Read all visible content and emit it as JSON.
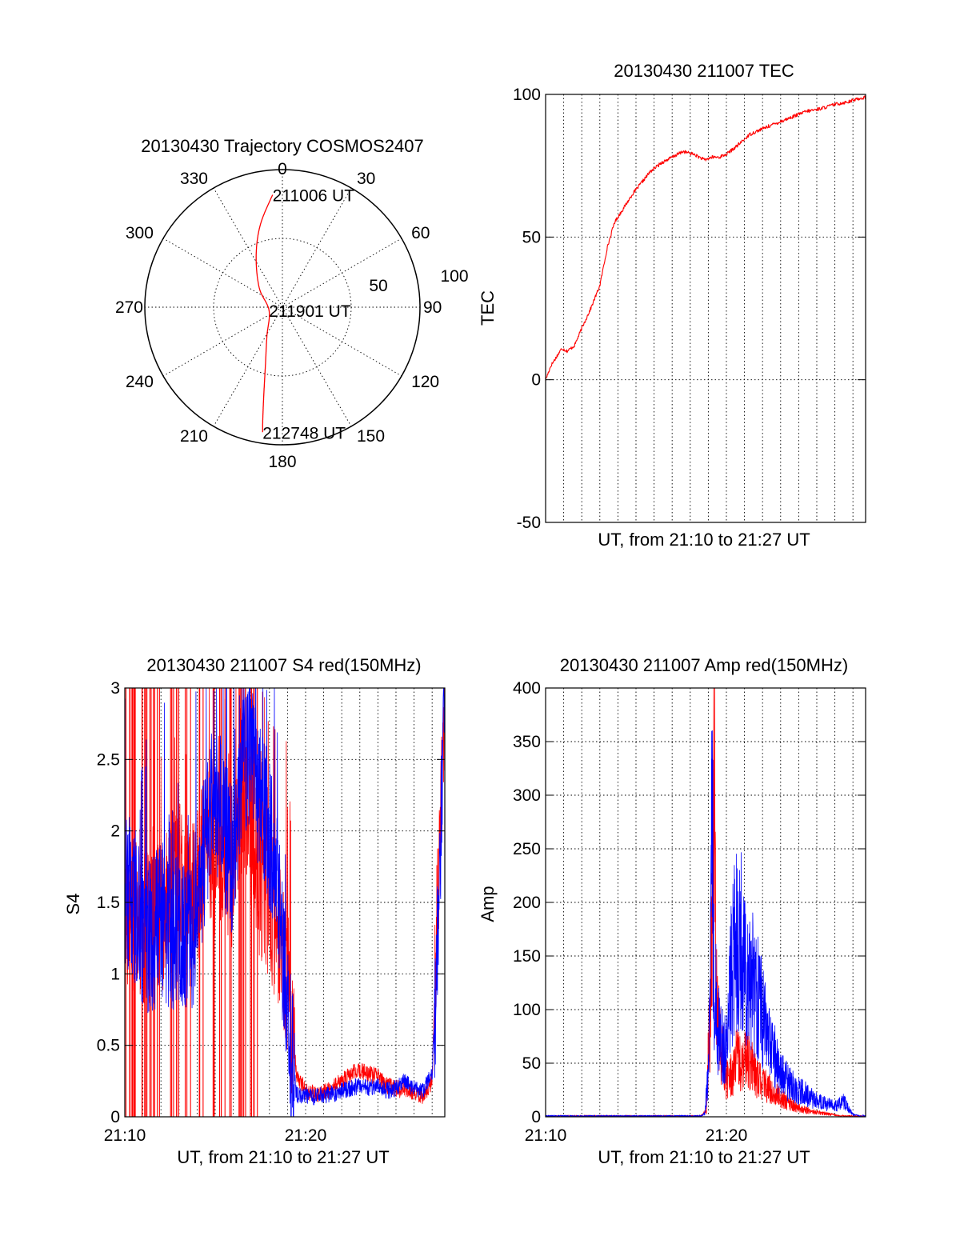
{
  "figure": {
    "polar_title": "20130430 Trajectory COSMOS2407",
    "tec_title": "20130430 211007 TEC",
    "s4_title": "20130430 211007 S4 red(150MHz)",
    "amp_title": "20130430 211007 Amp red(150MHz)"
  },
  "colors": {
    "red": "#ff0000",
    "blue": "#0000ff",
    "axis": "#000000"
  },
  "chart_data": [
    {
      "type": "polar",
      "title": "20130430 Trajectory COSMOS2407",
      "azimuth_labels": [
        "0",
        "30",
        "60",
        "90",
        "120",
        "150",
        "180",
        "210",
        "240",
        "270",
        "300",
        "330"
      ],
      "radial_labels": [
        "50",
        "100"
      ],
      "rlim": [
        0,
        100
      ],
      "trajectory": [
        {
          "az": 355,
          "r": 82
        },
        {
          "az": 345,
          "r": 62
        },
        {
          "az": 333,
          "r": 42
        },
        {
          "az": 310,
          "r": 22
        },
        {
          "az": 256,
          "r": 10
        },
        {
          "az": 208,
          "r": 24
        },
        {
          "az": 196,
          "r": 45
        },
        {
          "az": 192,
          "r": 65
        },
        {
          "az": 190,
          "r": 82
        },
        {
          "az": 189,
          "r": 92
        }
      ],
      "annotations": [
        {
          "text": "211006 UT",
          "az": 355,
          "r": 82
        },
        {
          "text": "211901 UT",
          "az": 256,
          "r": 10
        },
        {
          "text": "212748 UT",
          "az": 189,
          "r": 92
        }
      ],
      "trajectory_color": "#ff0000"
    },
    {
      "type": "line",
      "title": "20130430 211007 TEC",
      "xlabel": "UT, from 21:10 to 21:27 UT",
      "ylabel": "TEC",
      "xlim": [
        0,
        17.7
      ],
      "ylim": [
        -50,
        100
      ],
      "y_ticks": [
        "-50",
        "0",
        "50",
        "100"
      ],
      "x_ticks": [],
      "series": [
        {
          "color": "#ff0000",
          "x": [
            0,
            0.3,
            0.6,
            0.9,
            1.2,
            1.6,
            2.0,
            2.5,
            3.0,
            3.4,
            3.8,
            4.3,
            4.8,
            5.3,
            5.8,
            6.4,
            7.0,
            7.6,
            8.2,
            8.8,
            9.2,
            9.6,
            10.0,
            10.6,
            11.3,
            12.0,
            12.8,
            13.6,
            14.4,
            15.2,
            16.0,
            16.8,
            17.3,
            17.7
          ],
          "y": [
            0,
            5,
            8,
            11,
            10,
            12,
            18,
            25,
            33,
            46,
            55,
            60,
            65,
            69,
            73,
            76,
            78,
            80,
            79,
            77,
            78,
            78,
            79,
            82,
            86,
            88,
            90,
            92,
            94,
            95,
            96.5,
            97.5,
            98.5,
            99
          ]
        }
      ]
    },
    {
      "type": "line",
      "title": "20130430 211007 S4 red(150MHz)",
      "xlabel": "UT, from 21:10 to 21:27 UT",
      "ylabel": "S4",
      "xlim": [
        0,
        17.7
      ],
      "ylim": [
        0,
        3
      ],
      "x_ticks": [
        {
          "value": 0,
          "label": "21:10"
        },
        {
          "value": 10,
          "label": "21:20"
        }
      ],
      "y_ticks": [
        "0",
        "0.5",
        "1",
        "1.5",
        "2",
        "2.5",
        "3"
      ],
      "series": [
        {
          "color": "#ff0000",
          "x": [
            0,
            0.5,
            1.0,
            1.5,
            2.0,
            2.5,
            3.0,
            3.5,
            4.0,
            4.5,
            5.0,
            5.5,
            6.0,
            6.5,
            7.0,
            7.5,
            8.0,
            8.5,
            9.0,
            9.5,
            10.0,
            10.5,
            11.0,
            11.5,
            12.0,
            12.5,
            13.0,
            13.5,
            14.0,
            14.5,
            15.0,
            15.5,
            16.0,
            16.5,
            17.0,
            17.3,
            17.7
          ],
          "y": [
            1.5,
            1.4,
            1.3,
            1.3,
            1.4,
            1.5,
            1.8,
            1.5,
            1.6,
            2.0,
            1.8,
            1.9,
            1.7,
            2.3,
            2.0,
            1.6,
            1.5,
            1.3,
            1.0,
            0.3,
            0.18,
            0.16,
            0.17,
            0.2,
            0.25,
            0.3,
            0.32,
            0.3,
            0.28,
            0.22,
            0.2,
            0.18,
            0.17,
            0.15,
            0.25,
            1.5,
            2.8
          ]
        },
        {
          "color": "#0000ff",
          "x": [
            0,
            0.5,
            1.0,
            1.5,
            2.0,
            2.5,
            3.0,
            3.5,
            4.0,
            4.5,
            5.0,
            5.5,
            6.0,
            6.5,
            7.0,
            7.5,
            8.0,
            8.5,
            9.0,
            9.5,
            10.0,
            10.5,
            11.0,
            11.5,
            12.0,
            12.5,
            13.0,
            13.5,
            14.0,
            14.5,
            15.0,
            15.5,
            16.0,
            16.5,
            17.0,
            17.3,
            17.7
          ],
          "y": [
            1.6,
            1.5,
            1.3,
            1.25,
            1.4,
            1.3,
            1.3,
            1.2,
            1.4,
            2.0,
            2.3,
            2.0,
            1.8,
            2.5,
            2.6,
            2.2,
            2.0,
            1.5,
            0.7,
            0.15,
            0.15,
            0.14,
            0.15,
            0.16,
            0.18,
            0.2,
            0.22,
            0.2,
            0.22,
            0.18,
            0.2,
            0.25,
            0.2,
            0.18,
            0.3,
            1.2,
            2.9
          ]
        }
      ]
    },
    {
      "type": "line",
      "title": "20130430 211007 Amp red(150MHz)",
      "xlabel": "UT, from 21:10 to 21:27 UT",
      "ylabel": "Amp",
      "xlim": [
        0,
        17.7
      ],
      "ylim": [
        0,
        400
      ],
      "x_ticks": [
        {
          "value": 0,
          "label": "21:10"
        },
        {
          "value": 10,
          "label": "21:20"
        }
      ],
      "y_ticks": [
        "0",
        "50",
        "100",
        "150",
        "200",
        "250",
        "300",
        "350",
        "400"
      ],
      "series": [
        {
          "color": "#ff0000",
          "x": [
            0,
            8.5,
            8.9,
            9.0,
            9.1,
            9.2,
            9.3,
            9.45,
            9.6,
            9.8,
            10.0,
            10.3,
            10.6,
            10.9,
            11.2,
            11.5,
            11.8,
            12.2,
            12.6,
            13.0,
            13.5,
            14.0,
            14.5,
            15.0,
            15.5,
            16.0,
            16.5,
            17.7
          ],
          "y": [
            0,
            0,
            5,
            60,
            90,
            180,
            380,
            120,
            80,
            50,
            35,
            40,
            55,
            45,
            60,
            40,
            35,
            28,
            22,
            18,
            12,
            8,
            6,
            4,
            3,
            2,
            0,
            0
          ]
        },
        {
          "color": "#0000ff",
          "x": [
            0,
            8.5,
            8.8,
            9.0,
            9.1,
            9.2,
            9.3,
            9.5,
            9.7,
            10.0,
            10.3,
            10.6,
            11.0,
            11.4,
            11.8,
            12.2,
            12.6,
            13.0,
            13.5,
            14.0,
            14.5,
            15.0,
            15.5,
            16.0,
            16.5,
            17.0,
            17.7
          ],
          "y": [
            0,
            0,
            3,
            40,
            120,
            318,
            130,
            90,
            70,
            60,
            140,
            172,
            150,
            130,
            110,
            80,
            60,
            40,
            30,
            25,
            20,
            15,
            12,
            10,
            14,
            2,
            0
          ]
        }
      ]
    }
  ]
}
